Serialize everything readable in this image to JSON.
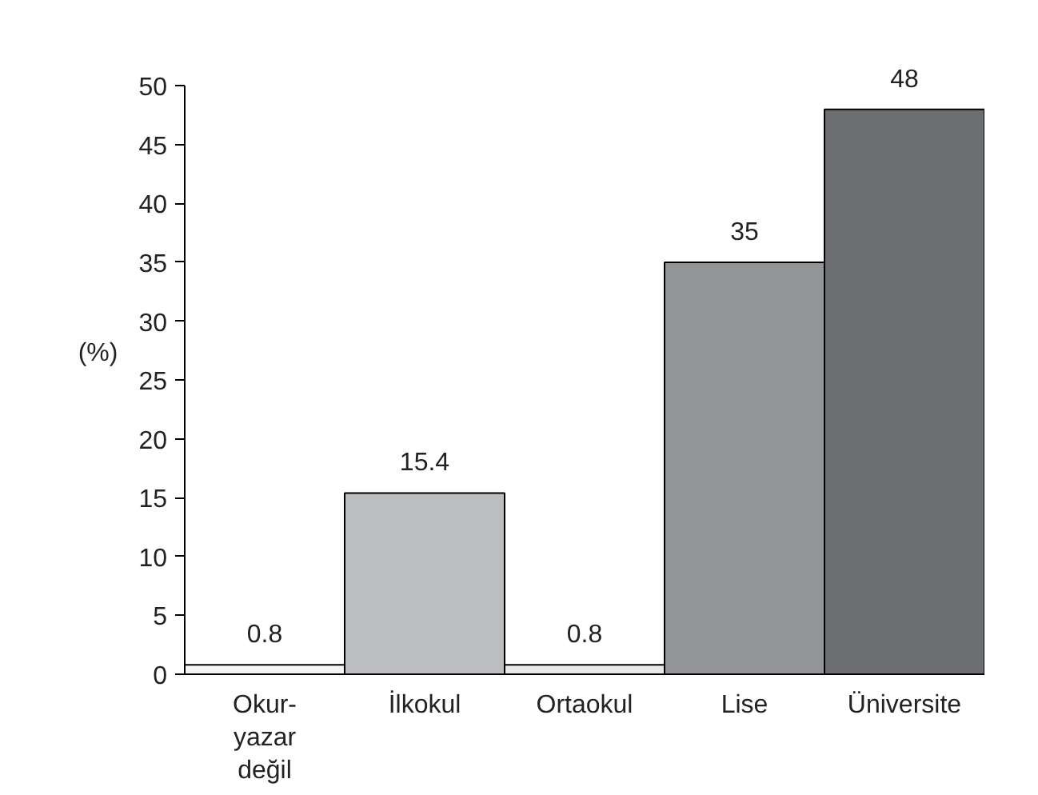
{
  "chart_data": {
    "type": "bar",
    "ylabel": "(%)",
    "categories": [
      "Okur-\nyazar\ndeğil",
      "İlkokul",
      "Ortaokul",
      "Lise",
      "Üniversite"
    ],
    "values": [
      0.8,
      15.4,
      0.8,
      35,
      48
    ],
    "colors": [
      "#f4f4f4",
      "#bcbdc0",
      "#e8e8e8",
      "#939598",
      "#6d6e71"
    ],
    "ylim": [
      0,
      50
    ],
    "yticks": [
      0,
      5,
      10,
      15,
      20,
      25,
      30,
      35,
      40,
      45,
      50
    ],
    "data_labels": true,
    "grid": false
  }
}
